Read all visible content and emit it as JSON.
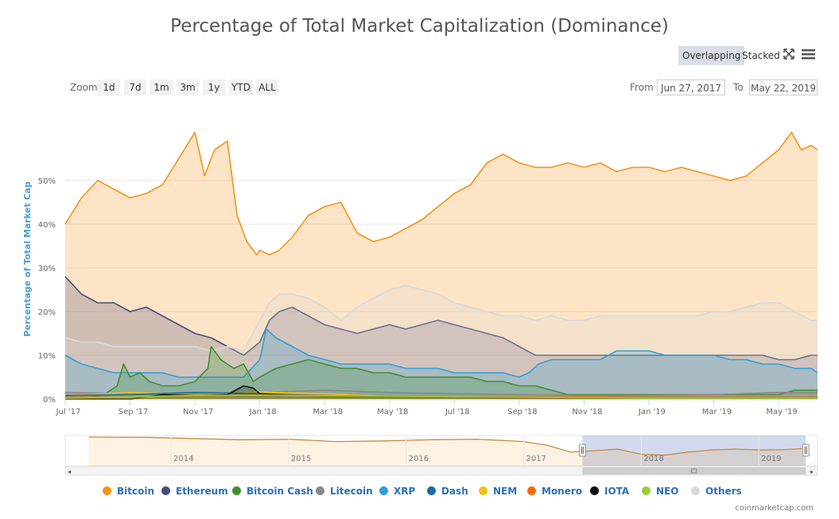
{
  "header": {
    "title": "Percentage of Total Market Capitalization (Dominance)",
    "modes": [
      "Overlapping",
      "Stacked"
    ],
    "active_mode": "Overlapping"
  },
  "toolbar": {
    "zoom_label": "Zoom",
    "zoom_buttons": [
      "1d",
      "7d",
      "1m",
      "3m",
      "1y",
      "YTD",
      "ALL"
    ],
    "from_label": "From",
    "from_value": "Jun 27, 2017",
    "to_label": "To",
    "to_value": "May 22, 2019"
  },
  "credit": "coinmarketcap.com",
  "colors": {
    "Bitcoin": "#f7931a",
    "Ethereum": "#4a4d7a",
    "Bitcoin Cash": "#3f8f2f",
    "Litecoin": "#888888",
    "XRP": "#2f9fd8",
    "Dash": "#1b6aa5",
    "NEM": "#f4c20d",
    "Monero": "#ff6600",
    "IOTA": "#111111",
    "NEO": "#9acd32",
    "Others": "#d9d9d9"
  },
  "chart_data": {
    "type": "area",
    "title": "Percentage of Total Market Capitalization (Dominance)",
    "ylabel": "Percentage of Total Market Cap",
    "xlabel": "",
    "ylim": [
      0,
      64
    ],
    "yticks": [
      0,
      10,
      20,
      30,
      40,
      50
    ],
    "ytick_labels": [
      "0%",
      "10%",
      "20%",
      "30%",
      "40%",
      "50%"
    ],
    "xlim": [
      0,
      23.2
    ],
    "x_unit": "months since Jul 1, 2017",
    "xtick_positions": [
      0,
      2,
      4,
      6,
      8,
      10,
      12,
      14,
      16,
      18,
      20,
      22
    ],
    "xtick_labels": [
      "Jul '17",
      "Sep '17",
      "Nov '17",
      "Jan '18",
      "Mar '18",
      "May '18",
      "Jul '18",
      "Sep '18",
      "Nov '18",
      "Jan '19",
      "Mar '19",
      "May '19"
    ],
    "series": [
      {
        "name": "Bitcoin",
        "x": [
          0,
          0.5,
          1,
          1.5,
          2,
          2.5,
          3,
          3.5,
          4,
          4.3,
          4.6,
          5,
          5.3,
          5.6,
          5.9,
          6,
          6.3,
          6.6,
          7,
          7.5,
          8,
          8.5,
          9,
          9.5,
          10,
          10.5,
          11,
          11.5,
          12,
          12.5,
          13,
          13.5,
          14,
          14.5,
          15,
          15.5,
          16,
          16.5,
          17,
          17.5,
          18,
          18.5,
          19,
          19.5,
          20,
          20.5,
          21,
          21.5,
          22,
          22.4,
          22.7,
          23,
          23.2
        ],
        "values": [
          40,
          46,
          50,
          48,
          46,
          47,
          49,
          55,
          61,
          51,
          57,
          59,
          42,
          36,
          33,
          34,
          33,
          34,
          37,
          42,
          44,
          45,
          38,
          36,
          37,
          39,
          41,
          44,
          47,
          49,
          54,
          56,
          54,
          53,
          53,
          54,
          53,
          54,
          52,
          53,
          53,
          52,
          53,
          52,
          51,
          50,
          51,
          54,
          57,
          61,
          57,
          58,
          57
        ]
      },
      {
        "name": "Ethereum",
        "x": [
          0,
          0.5,
          1,
          1.5,
          2,
          2.5,
          3,
          3.5,
          4,
          4.5,
          5,
          5.5,
          6,
          6.3,
          6.6,
          7,
          7.5,
          8,
          8.5,
          9,
          9.5,
          10,
          10.5,
          11,
          11.5,
          12,
          12.5,
          13,
          13.5,
          14,
          14.5,
          15,
          15.5,
          16,
          16.5,
          17,
          17.5,
          18,
          18.5,
          19,
          19.5,
          20,
          20.5,
          21,
          21.5,
          22,
          22.5,
          23,
          23.2
        ],
        "values": [
          28,
          24,
          22,
          22,
          20,
          21,
          19,
          17,
          15,
          14,
          12,
          10,
          13,
          18,
          20,
          21,
          19,
          17,
          16,
          15,
          16,
          17,
          16,
          17,
          18,
          17,
          16,
          15,
          14,
          12,
          10,
          10,
          10,
          10,
          10,
          10,
          10,
          10,
          10,
          10,
          10,
          10,
          10,
          10,
          10,
          9,
          9,
          10,
          10
        ]
      },
      {
        "name": "Others",
        "x": [
          0,
          0.5,
          1,
          1.5,
          2,
          2.5,
          3,
          3.5,
          4,
          4.5,
          5,
          5.5,
          6,
          6.3,
          6.6,
          7,
          7.5,
          8,
          8.5,
          9,
          9.5,
          10,
          10.5,
          11,
          11.5,
          12,
          12.5,
          13,
          13.5,
          14,
          14.5,
          15,
          15.5,
          16,
          16.5,
          17,
          17.5,
          18,
          18.5,
          19,
          19.5,
          20,
          20.5,
          21,
          21.5,
          22,
          22.5,
          23,
          23.2
        ],
        "values": [
          14,
          13,
          13,
          12,
          12,
          12,
          12,
          12,
          12,
          11,
          12,
          11,
          18,
          22,
          24,
          24,
          23,
          21,
          18,
          21,
          23,
          25,
          26,
          25,
          24,
          22,
          21,
          20,
          19,
          19,
          18,
          19,
          18,
          18,
          19,
          19,
          19,
          19,
          19,
          19,
          19,
          20,
          20,
          21,
          22,
          22,
          20,
          18,
          18
        ]
      },
      {
        "name": "XRP",
        "x": [
          0,
          0.5,
          1,
          1.5,
          2,
          2.5,
          3,
          3.5,
          4,
          4.5,
          5,
          5.5,
          6,
          6.2,
          6.5,
          7,
          7.5,
          8,
          8.5,
          9,
          9.5,
          10,
          10.5,
          11,
          11.5,
          12,
          12.5,
          13,
          13.5,
          14,
          14.3,
          14.6,
          15,
          15.5,
          16,
          16.5,
          17,
          17.5,
          18,
          18.5,
          19,
          19.5,
          20,
          20.5,
          21,
          21.5,
          22,
          22.5,
          23,
          23.2
        ],
        "values": [
          10,
          8,
          7,
          6,
          6,
          6,
          6,
          5,
          5,
          5,
          5,
          5,
          9,
          16,
          14,
          12,
          10,
          9,
          8,
          8,
          8,
          8,
          7,
          7,
          7,
          6,
          6,
          6,
          6,
          5,
          6,
          8,
          9,
          9,
          9,
          9,
          11,
          11,
          11,
          10,
          10,
          10,
          10,
          9,
          9,
          8,
          8,
          7,
          7,
          6
        ]
      },
      {
        "name": "Bitcoin Cash",
        "x": [
          0,
          0.4,
          0.8,
          1.2,
          1.6,
          1.8,
          2,
          2.3,
          2.6,
          3,
          3.5,
          4,
          4.4,
          4.5,
          4.8,
          5.2,
          5.5,
          5.8,
          6,
          6.5,
          7,
          7.5,
          8,
          8.5,
          9,
          9.5,
          10,
          10.5,
          11,
          11.5,
          12,
          12.5,
          13,
          13.5,
          14,
          14.5,
          15,
          15.5,
          16,
          16.5,
          17,
          17.5,
          18,
          18.5,
          19,
          19.5,
          20,
          20.5,
          21,
          21.5,
          22,
          22.5,
          23,
          23.2
        ],
        "values": [
          0,
          0,
          0.5,
          1,
          3,
          8,
          5,
          6,
          4,
          3,
          3,
          4,
          7,
          12,
          9,
          7,
          8,
          4,
          5,
          7,
          8,
          9,
          8,
          7,
          7,
          6,
          6,
          5,
          5,
          5,
          5,
          5,
          4,
          4,
          3,
          3,
          2,
          1,
          1,
          1,
          1,
          1,
          1,
          1,
          1,
          1,
          1,
          1,
          1,
          1,
          1,
          2,
          2,
          2
        ]
      },
      {
        "name": "Litecoin",
        "x": [
          0,
          2,
          4,
          6,
          8,
          10,
          12,
          14,
          16,
          18,
          20,
          22,
          23.2
        ],
        "values": [
          1.5,
          1.2,
          1.0,
          1.5,
          2.0,
          1.5,
          1.2,
          1.0,
          0.8,
          0.8,
          1.0,
          1.5,
          1.5
        ]
      },
      {
        "name": "NEM",
        "x": [
          0,
          2,
          4,
          6,
          8,
          10,
          12,
          14,
          16,
          18,
          20,
          22,
          23.2
        ],
        "values": [
          0.8,
          1.5,
          1.0,
          1.6,
          1.2,
          0.6,
          0.5,
          0.3,
          0.3,
          0.2,
          0.2,
          0.2,
          0.2
        ]
      },
      {
        "name": "Dash",
        "x": [
          0,
          2,
          4,
          6,
          8,
          10,
          12,
          14,
          16,
          18,
          20,
          22,
          23.2
        ],
        "values": [
          0.8,
          1.0,
          1.5,
          1.2,
          0.8,
          0.6,
          0.5,
          0.4,
          0.3,
          0.3,
          0.3,
          0.3,
          0.3
        ]
      },
      {
        "name": "IOTA",
        "x": [
          0,
          2,
          3,
          4,
          5,
          5.5,
          5.8,
          6,
          6.5,
          7,
          8,
          10,
          12,
          14,
          16,
          18,
          20,
          22,
          23.2
        ],
        "values": [
          0,
          0,
          1,
          0.8,
          1.0,
          3.0,
          2.5,
          1.2,
          1.0,
          0.8,
          0.6,
          0.5,
          0.4,
          0.3,
          0.2,
          0.2,
          0.2,
          0.2,
          0.2
        ]
      },
      {
        "name": "Monero",
        "x": [
          0,
          2,
          4,
          6,
          8,
          10,
          12,
          14,
          16,
          18,
          20,
          22,
          23.2
        ],
        "values": [
          0.4,
          0.5,
          0.8,
          0.9,
          0.8,
          0.6,
          0.5,
          0.5,
          0.5,
          0.4,
          0.4,
          0.4,
          0.4
        ]
      },
      {
        "name": "NEO",
        "x": [
          0,
          2,
          4,
          6,
          8,
          10,
          12,
          14,
          16,
          18,
          20,
          22,
          23.2
        ],
        "values": [
          0.2,
          0.5,
          0.8,
          0.9,
          0.7,
          0.6,
          0.5,
          0.4,
          0.3,
          0.2,
          0.2,
          0.2,
          0.2
        ]
      }
    ],
    "legend": [
      "Bitcoin",
      "Ethereum",
      "Bitcoin Cash",
      "Litecoin",
      "XRP",
      "Dash",
      "NEM",
      "Monero",
      "IOTA",
      "NEO",
      "Others"
    ],
    "navigator": {
      "xtick_labels": [
        "2014",
        "2015",
        "2016",
        "2017",
        "2018",
        "2019"
      ],
      "series": {
        "x": [
          2013.3,
          2013.8,
          2014.2,
          2014.6,
          2015.0,
          2015.4,
          2015.8,
          2016.2,
          2016.6,
          2017.0,
          2017.2,
          2017.4,
          2017.6,
          2017.8,
          2018.0,
          2018.2,
          2018.4,
          2018.6,
          2018.8,
          2019.0,
          2019.2,
          2019.4
        ],
        "values": [
          95,
          94,
          90,
          86,
          88,
          80,
          82,
          86,
          88,
          80,
          68,
          45,
          50,
          55,
          38,
          35,
          45,
          52,
          55,
          52,
          53,
          58
        ]
      }
    }
  }
}
